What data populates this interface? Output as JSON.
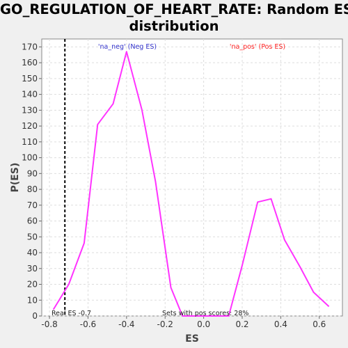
{
  "chart_data": {
    "type": "line",
    "title_lines": [
      "GO_REGULATION_OF_HEART_RATE: Random ES",
      "distribution"
    ],
    "xlabel": "ES",
    "ylabel": "P(ES)",
    "xlim": [
      -0.84,
      0.72
    ],
    "ylim": [
      0,
      175
    ],
    "xticks": [
      -0.8,
      -0.6,
      -0.4,
      -0.2,
      0.0,
      0.2,
      0.4,
      0.6
    ],
    "xtick_labels": [
      "-0.8",
      "-0.6",
      "-0.4",
      "-0.2",
      "0.0",
      "0.2",
      "0.4",
      "0.6"
    ],
    "yticks": [
      0,
      10,
      20,
      30,
      40,
      50,
      60,
      70,
      80,
      90,
      100,
      110,
      120,
      130,
      140,
      150,
      160,
      170
    ],
    "grid": true,
    "series": [
      {
        "color": "#ff33ff",
        "points": [
          [
            -0.78,
            4
          ],
          [
            -0.7,
            20
          ],
          [
            -0.62,
            46
          ],
          [
            -0.55,
            121
          ],
          [
            -0.47,
            134
          ],
          [
            -0.4,
            167
          ],
          [
            -0.32,
            130
          ],
          [
            -0.25,
            85
          ],
          [
            -0.17,
            18
          ],
          [
            -0.11,
            0
          ],
          [
            0.13,
            0
          ],
          [
            0.2,
            32
          ],
          [
            0.28,
            72
          ],
          [
            0.35,
            74
          ],
          [
            0.42,
            48
          ],
          [
            0.5,
            31
          ],
          [
            0.57,
            15
          ],
          [
            0.65,
            6
          ]
        ]
      }
    ],
    "real_es": -0.72,
    "annotations": {
      "neg_label": "'na_neg' (Neg ES)",
      "neg_color": "#3333cc",
      "pos_label": "'na_pos' (Pos ES)",
      "pos_color": "#ff2222",
      "real_es_label": "Real ES -0.7",
      "pos_scores_label": "Sets with pos scores: 28%"
    }
  }
}
